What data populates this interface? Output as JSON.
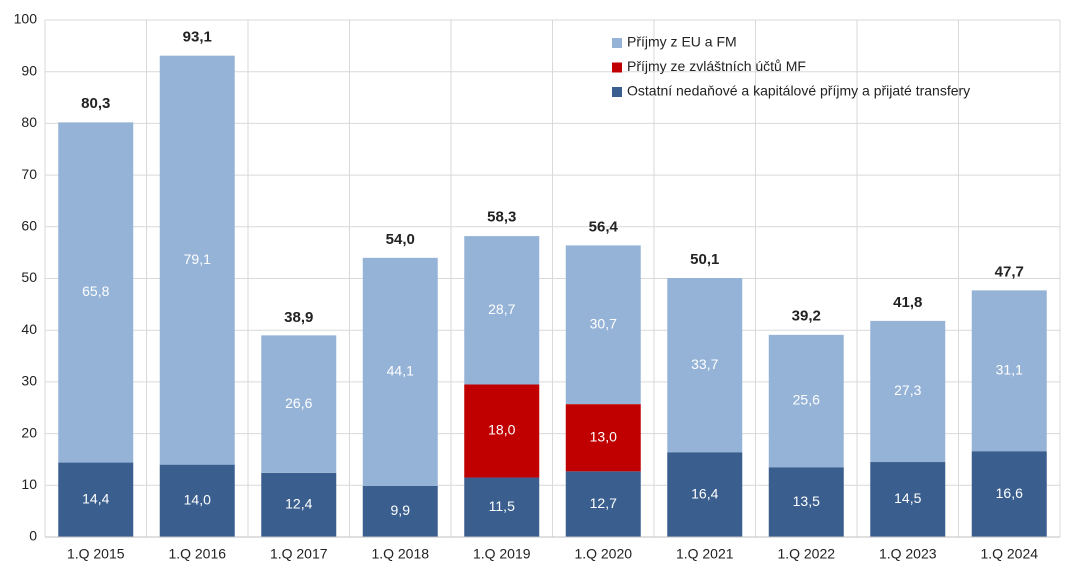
{
  "chart_data": {
    "type": "stacked_bar",
    "categories": [
      "1.Q 2015",
      "1.Q 2016",
      "1.Q 2017",
      "1.Q 2018",
      "1.Q 2019",
      "1.Q 2020",
      "1.Q 2021",
      "1.Q 2022",
      "1.Q 2023",
      "1.Q 2024"
    ],
    "series": [
      {
        "name": "Ostatní nedaňové a kapitálové příjmy a přijaté transfery",
        "color": "#3a5f8f",
        "values": [
          14.4,
          14.0,
          12.4,
          9.9,
          11.5,
          12.7,
          16.4,
          13.5,
          14.5,
          16.6
        ],
        "value_labels": [
          "14,4",
          "14,0",
          "12,4",
          "9,9",
          "11,5",
          "12,7",
          "16,4",
          "13,5",
          "14,5",
          "16,6"
        ]
      },
      {
        "name": "Příjmy ze zvláštních účtů MF",
        "color": "#c00000",
        "values": [
          null,
          null,
          null,
          null,
          18.0,
          13.0,
          null,
          null,
          null,
          null
        ],
        "value_labels": [
          null,
          null,
          null,
          null,
          "18,0",
          "13,0",
          null,
          null,
          null,
          null
        ]
      },
      {
        "name": "Příjmy z EU a FM",
        "color": "#95b3d7",
        "values": [
          65.8,
          79.1,
          26.6,
          44.1,
          28.7,
          30.7,
          33.7,
          25.6,
          27.3,
          31.1
        ],
        "value_labels": [
          "65,8",
          "79,1",
          "26,6",
          "44,1",
          "28,7",
          "30,7",
          "33,7",
          "25,6",
          "27,3",
          "31,1"
        ]
      }
    ],
    "totals": [
      80.3,
      93.1,
      38.9,
      54.0,
      58.3,
      56.4,
      50.1,
      39.2,
      41.8,
      47.7
    ],
    "total_labels": [
      "80,3",
      "93,1",
      "38,9",
      "54,0",
      "58,3",
      "56,4",
      "50,1",
      "39,2",
      "41,8",
      "47,7"
    ],
    "ylim": [
      0,
      100
    ],
    "yticks": [
      0,
      10,
      20,
      30,
      40,
      50,
      60,
      70,
      80,
      90,
      100
    ],
    "grid": true,
    "legend": "upper right"
  }
}
